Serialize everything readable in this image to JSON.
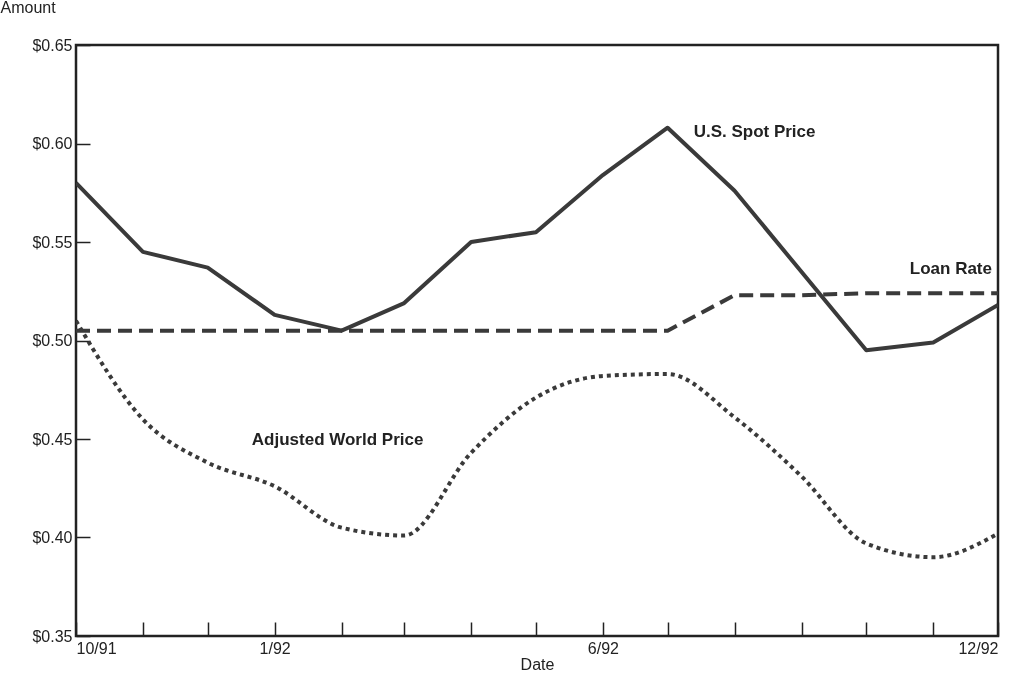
{
  "chart_data": {
    "type": "line",
    "xlabel": "Date",
    "ylabel": "Amount",
    "x": [
      "1991-10",
      "1991-11",
      "1991-12",
      "1992-01",
      "1992-02",
      "1992-03",
      "1992-04",
      "1992-05",
      "1992-06",
      "1992-07",
      "1992-08",
      "1992-09",
      "1992-10",
      "1992-11",
      "1992-12"
    ],
    "series": [
      {
        "name": "U.S. Spot Price",
        "color": "#3a3a3a",
        "line_style": "solid",
        "x": [
          "1991-10",
          "1991-11",
          "1991-12",
          "1992-01",
          "1992-02",
          "1992-03",
          "1992-04",
          "1992-05",
          "1992-06",
          "1992-07",
          "1992-08",
          "1992-10",
          "1992-11",
          "1992-12"
        ],
        "values": [
          0.58,
          0.545,
          0.537,
          0.513,
          0.505,
          0.519,
          0.55,
          0.555,
          0.584,
          0.608,
          0.576,
          0.495,
          0.499,
          0.518
        ]
      },
      {
        "name": "Loan Rate",
        "color": "#3a3a3a",
        "line_style": "dashed",
        "values": [
          0.505,
          0.505,
          0.505,
          0.505,
          0.505,
          0.505,
          0.505,
          0.505,
          0.505,
          0.505,
          0.523,
          0.523,
          0.524,
          0.524,
          0.524
        ]
      },
      {
        "name": "Adjusted World Price",
        "color": "#3a3a3a",
        "line_style": "dotted",
        "values": [
          0.51,
          0.46,
          0.438,
          0.426,
          0.405,
          0.401,
          0.443,
          0.471,
          0.482,
          0.483,
          0.461,
          0.431,
          0.397,
          0.39,
          0.402
        ]
      }
    ],
    "xlim": [
      "1991-10",
      "1992-12"
    ],
    "xticks": [
      {
        "value": "1991-10",
        "label": "10/91"
      },
      {
        "value": "1991-11",
        "label": null
      },
      {
        "value": "1991-12",
        "label": null
      },
      {
        "value": "1992-01",
        "label": "1/92"
      },
      {
        "value": "1992-02",
        "label": null
      },
      {
        "value": "1992-03",
        "label": null
      },
      {
        "value": "1992-04",
        "label": null
      },
      {
        "value": "1992-05",
        "label": null
      },
      {
        "value": "1992-06",
        "label": "6/92"
      },
      {
        "value": "1992-07",
        "label": null
      },
      {
        "value": "1992-08",
        "label": null
      },
      {
        "value": "1992-09",
        "label": null
      },
      {
        "value": "1992-10",
        "label": null
      },
      {
        "value": "1992-11",
        "label": null
      },
      {
        "value": "1992-12",
        "label": "12/92"
      }
    ],
    "ylim": [
      0.35,
      0.65
    ],
    "yticks": [
      {
        "value": 0.35,
        "label": "$0.35"
      },
      {
        "value": 0.4,
        "label": "$0.40"
      },
      {
        "value": 0.45,
        "label": "$0.45"
      },
      {
        "value": 0.5,
        "label": "$0.50"
      },
      {
        "value": 0.55,
        "label": "$0.55"
      },
      {
        "value": 0.6,
        "label": "$0.60"
      },
      {
        "value": 0.65,
        "label": "$0.65"
      }
    ],
    "grid": false,
    "legend": false,
    "marker": "none"
  }
}
